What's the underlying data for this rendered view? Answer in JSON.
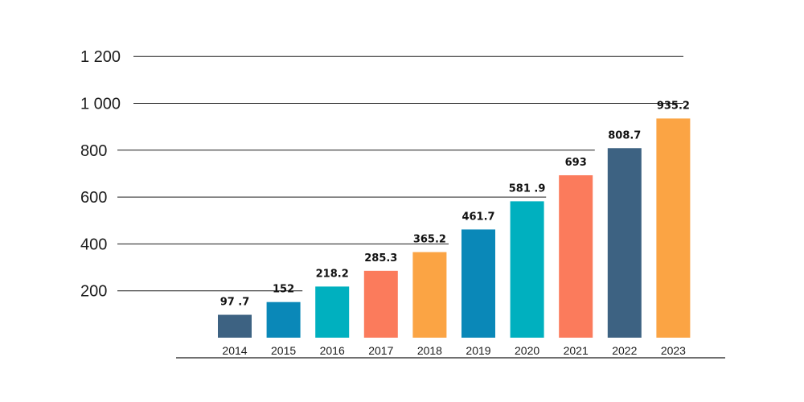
{
  "chart_data": {
    "type": "bar",
    "title": "",
    "xlabel": "",
    "ylabel": "",
    "categories": [
      "2014",
      "2015",
      "2016",
      "2017",
      "2018",
      "2019",
      "2020",
      "2021",
      "2022",
      "2023"
    ],
    "values": [
      97.7,
      152,
      218.2,
      285.3,
      365.2,
      461.7,
      581.9,
      693,
      808.7,
      935.2
    ],
    "value_labels": [
      "97 .7",
      "152",
      "218.2",
      "285.3",
      "365.2",
      "461.7",
      "581 .9",
      "693",
      "808.7",
      "935.2"
    ],
    "bar_colors": [
      "#3d6282",
      "#0a88b8",
      "#00b0bf",
      "#fb7b5c",
      "#fba444",
      "#0a88b8",
      "#00b0bf",
      "#fb7b5c",
      "#3d6282",
      "#fba444"
    ],
    "ylim": [
      0,
      1200
    ],
    "y_ticks": [
      200,
      400,
      600,
      800,
      1000,
      1200
    ],
    "y_tick_labels": [
      "200",
      "400",
      "600",
      "800",
      "1 000",
      "1  200"
    ],
    "grid": "staircase horizontal lines ending before bars",
    "legend": "none"
  }
}
